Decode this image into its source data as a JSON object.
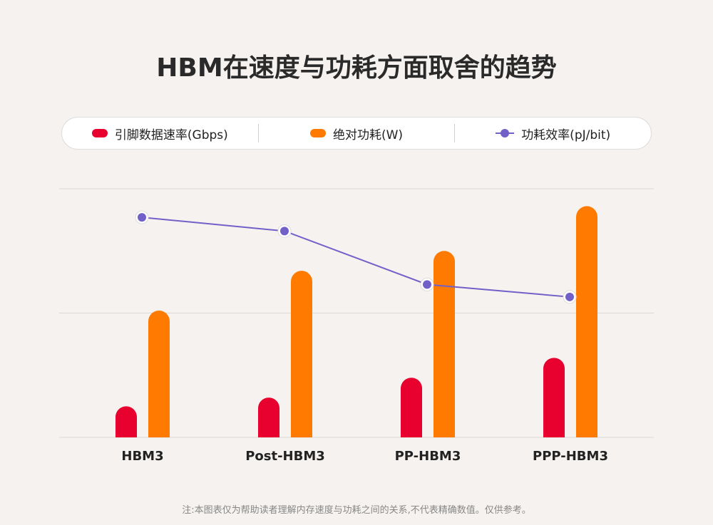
{
  "title": "HBM在速度与功耗方面取舍的趋势",
  "legend": [
    {
      "label": "引脚数据速率(Gbps)",
      "color": "#e8002e",
      "kind": "bar"
    },
    {
      "label": "绝对功耗(W)",
      "color": "#ff7a00",
      "kind": "bar"
    },
    {
      "label": "功耗效率(pJ/bit)",
      "color": "#7260c9",
      "kind": "line"
    }
  ],
  "note": "注:本图表仅为帮助读者理解内存速度与功耗之间的关系,不代表精确数值。仅供参考。",
  "chart_data": {
    "type": "bar",
    "title": "HBM在速度与功耗方面取舍的趋势",
    "categories": [
      "HBM3",
      "Post-HBM3",
      "PP-HBM3",
      "PPP-HBM3"
    ],
    "ylim": [
      0,
      2
    ],
    "grid": true,
    "legend_position": "top",
    "series": [
      {
        "name": "引脚数据速率(Gbps)",
        "type": "bar",
        "color": "#e8002e",
        "values": [
          0.25,
          0.32,
          0.48,
          0.64
        ]
      },
      {
        "name": "绝对功耗(W)",
        "type": "bar",
        "color": "#ff7a00",
        "values": [
          1.02,
          1.34,
          1.5,
          1.86
        ]
      },
      {
        "name": "功耗效率(pJ/bit)",
        "type": "line",
        "color": "#7260c9",
        "values": [
          1.77,
          1.66,
          1.23,
          1.13
        ]
      }
    ]
  }
}
